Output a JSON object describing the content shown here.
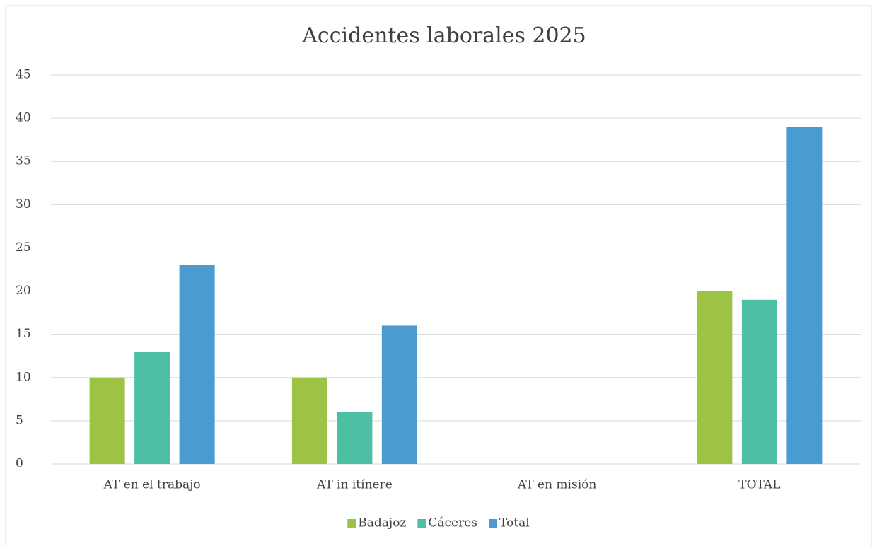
{
  "chart_data": {
    "type": "bar",
    "title": "Accidentes laborales 2025",
    "categories": [
      "AT en el trabajo",
      "AT in itínere",
      "AT en misión",
      "TOTAL"
    ],
    "series": [
      {
        "name": "Badajoz",
        "color": "#9dc344",
        "values": [
          10,
          10,
          0,
          20
        ]
      },
      {
        "name": "Cáceres",
        "color": "#4dbfa4",
        "values": [
          13,
          6,
          0,
          19
        ]
      },
      {
        "name": "Total",
        "color": "#4a9bcf",
        "values": [
          23,
          16,
          0,
          39
        ]
      }
    ],
    "ylim": [
      0,
      45
    ],
    "yticks": [
      0,
      5,
      10,
      15,
      20,
      25,
      30,
      35,
      40,
      45
    ],
    "grid": true,
    "legend": "bottom"
  }
}
